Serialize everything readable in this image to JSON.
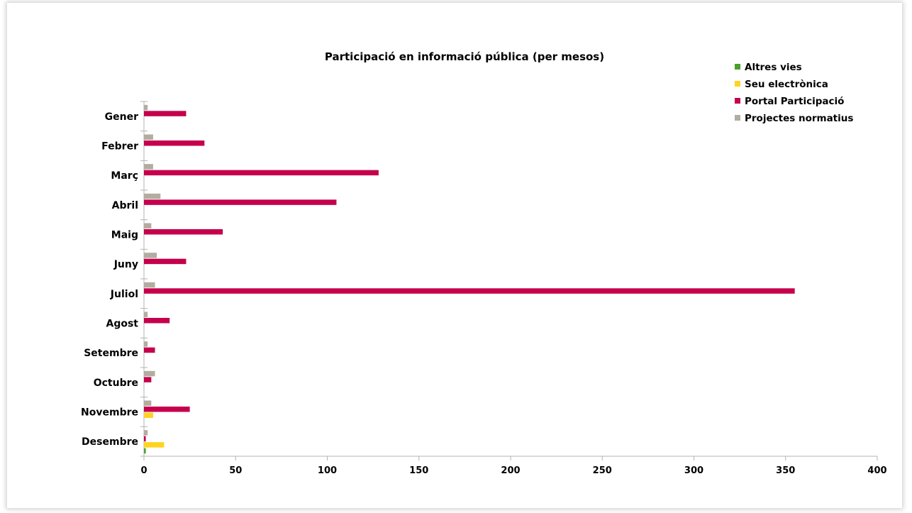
{
  "chart_data": {
    "type": "bar",
    "orientation": "horizontal",
    "title": "Participació en informació pública (per mesos)",
    "categories": [
      "Gener",
      "Febrer",
      "Març",
      "Abril",
      "Maig",
      "Juny",
      "Juliol",
      "Agost",
      "Setembre",
      "Octubre",
      "Novembre",
      "Desembre"
    ],
    "series": [
      {
        "name": "Altres vies",
        "color": "#4aa02c",
        "values": [
          0,
          0,
          0,
          0,
          0,
          0,
          0,
          0,
          0,
          0,
          0,
          1
        ]
      },
      {
        "name": "Seu electrònica",
        "color": "#ffd320",
        "values": [
          0,
          0,
          0,
          0,
          0,
          0,
          0,
          0,
          0,
          0,
          5,
          11
        ]
      },
      {
        "name": "Portal Participació",
        "color": "#c5004c",
        "values": [
          23,
          33,
          128,
          105,
          43,
          23,
          355,
          14,
          6,
          4,
          25,
          1
        ]
      },
      {
        "name": "Projectes normatius",
        "color": "#b3aca0",
        "values": [
          2,
          5,
          5,
          9,
          4,
          7,
          6,
          2,
          2,
          6,
          4,
          2
        ]
      }
    ],
    "xlim": [
      0,
      400
    ],
    "xticks": [
      "0",
      "50",
      "100",
      "150",
      "200",
      "250",
      "300",
      "350",
      "400"
    ],
    "grid": false,
    "legend_position": "top-right"
  }
}
